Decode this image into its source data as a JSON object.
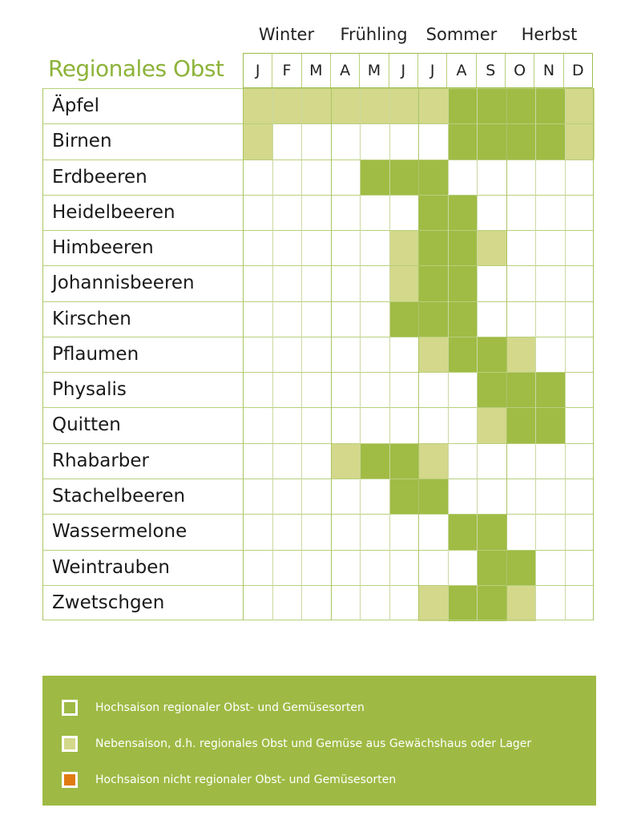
{
  "chart_data": {
    "type": "table",
    "title": "Regionales Obst",
    "seasons": [
      "Winter",
      "Frühling",
      "Sommer",
      "Herbst"
    ],
    "months": [
      "J",
      "F",
      "M",
      "A",
      "M",
      "J",
      "J",
      "A",
      "S",
      "O",
      "N",
      "D"
    ],
    "value_legend": {
      "0": "none",
      "1": "Nebensaison",
      "2": "Hochsaison regional"
    },
    "rows": [
      {
        "name": "Äpfel",
        "months": [
          1,
          1,
          1,
          1,
          1,
          1,
          1,
          2,
          2,
          2,
          2,
          1
        ]
      },
      {
        "name": "Birnen",
        "months": [
          1,
          0,
          0,
          0,
          0,
          0,
          0,
          2,
          2,
          2,
          2,
          1
        ]
      },
      {
        "name": "Erdbeeren",
        "months": [
          0,
          0,
          0,
          0,
          2,
          2,
          2,
          0,
          0,
          0,
          0,
          0
        ]
      },
      {
        "name": "Heidelbeeren",
        "months": [
          0,
          0,
          0,
          0,
          0,
          0,
          2,
          2,
          0,
          0,
          0,
          0
        ]
      },
      {
        "name": "Himbeeren",
        "months": [
          0,
          0,
          0,
          0,
          0,
          1,
          2,
          2,
          1,
          0,
          0,
          0
        ]
      },
      {
        "name": "Johannisbeeren",
        "months": [
          0,
          0,
          0,
          0,
          0,
          1,
          2,
          2,
          0,
          0,
          0,
          0
        ]
      },
      {
        "name": "Kirschen",
        "months": [
          0,
          0,
          0,
          0,
          0,
          2,
          2,
          2,
          0,
          0,
          0,
          0
        ]
      },
      {
        "name": "Pflaumen",
        "months": [
          0,
          0,
          0,
          0,
          0,
          0,
          1,
          2,
          2,
          1,
          0,
          0
        ]
      },
      {
        "name": "Physalis",
        "months": [
          0,
          0,
          0,
          0,
          0,
          0,
          0,
          0,
          2,
          2,
          2,
          0
        ]
      },
      {
        "name": "Quitten",
        "months": [
          0,
          0,
          0,
          0,
          0,
          0,
          0,
          0,
          1,
          2,
          2,
          0
        ]
      },
      {
        "name": "Rhabarber",
        "months": [
          0,
          0,
          0,
          1,
          2,
          2,
          1,
          0,
          0,
          0,
          0,
          0
        ]
      },
      {
        "name": "Stachelbeeren",
        "months": [
          0,
          0,
          0,
          0,
          0,
          2,
          2,
          0,
          0,
          0,
          0,
          0
        ]
      },
      {
        "name": "Wassermelone",
        "months": [
          0,
          0,
          0,
          0,
          0,
          0,
          0,
          2,
          2,
          0,
          0,
          0
        ]
      },
      {
        "name": "Weintrauben",
        "months": [
          0,
          0,
          0,
          0,
          0,
          0,
          0,
          0,
          2,
          2,
          0,
          0
        ]
      },
      {
        "name": "Zwetschgen",
        "months": [
          0,
          0,
          0,
          0,
          0,
          0,
          1,
          2,
          2,
          1,
          0,
          0
        ]
      }
    ]
  },
  "colors": {
    "high": "#a0bc45",
    "low": "#d3d88a",
    "white": "#ffffff",
    "orange": "#e07b12",
    "title": "#8db33a"
  },
  "legend": [
    {
      "label": "Hochsaison regionaler Obst- und Gemüsesorten",
      "swatch": "#9eba44"
    },
    {
      "label": "Nebensaison, d.h. regionales Obst und Gemüse aus Gewächshaus oder Lager",
      "swatch": "#d3d88a"
    },
    {
      "label": "Hochsaison nicht regionaler Obst- und Gemüsesorten",
      "swatch": "#e07b12"
    }
  ]
}
